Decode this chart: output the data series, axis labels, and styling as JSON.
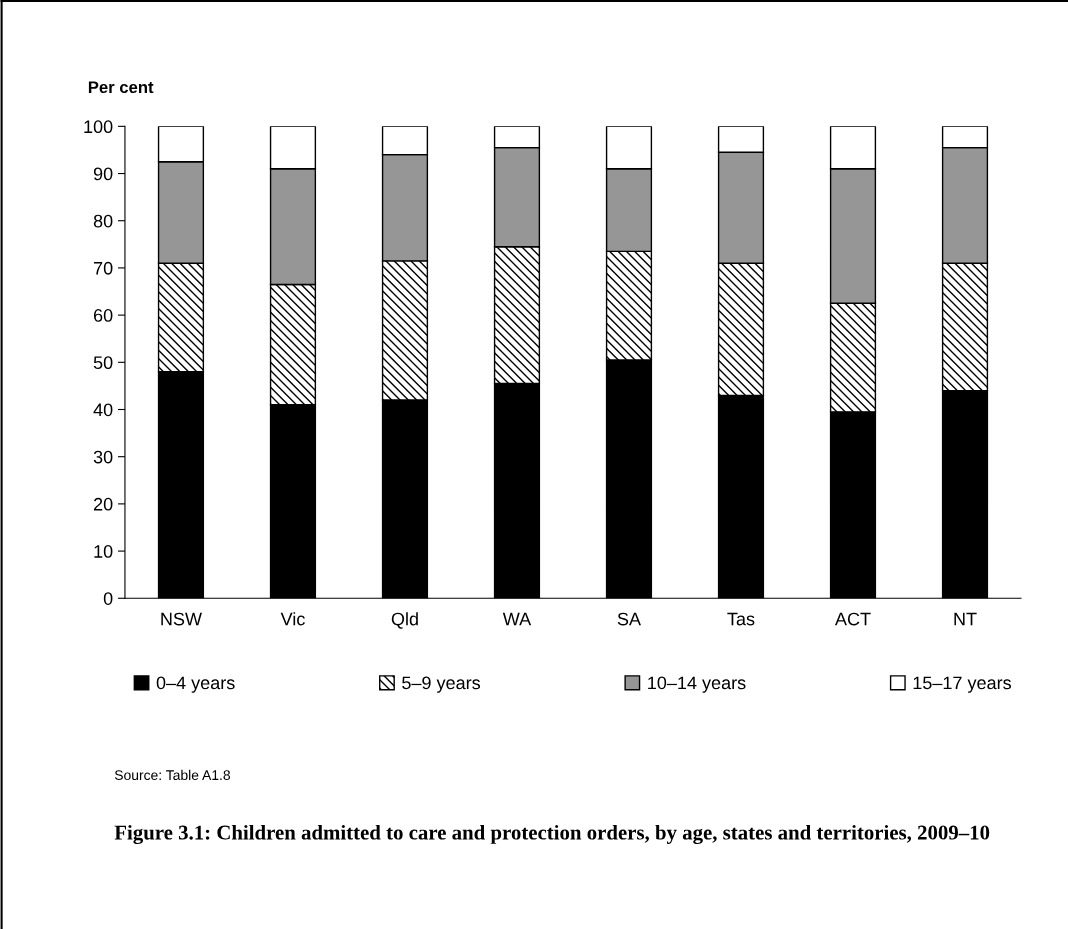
{
  "chart_data": {
    "type": "bar",
    "stacked": true,
    "title": "Figure 3.1: Children admitted to care and protection orders, by age, states and territories, 2009–10",
    "ylabel": "Per cent",
    "categories": [
      "NSW",
      "Vic",
      "Qld",
      "WA",
      "SA",
      "Tas",
      "ACT",
      "NT"
    ],
    "series": [
      {
        "name": "0–4 years",
        "color": "#000000",
        "values": [
          48,
          41,
          42,
          45.5,
          50.5,
          43,
          39.5,
          44
        ]
      },
      {
        "name": "5–9 years",
        "color": "#000000",
        "values": [
          23,
          25.5,
          29.5,
          29,
          23,
          28,
          23,
          27
        ]
      },
      {
        "name": "10–14 years",
        "color": "#969696",
        "values": [
          21.5,
          24.5,
          22.5,
          21,
          17.5,
          23.5,
          28.5,
          24.5
        ]
      },
      {
        "name": "15–17 years",
        "color": "#ffffff",
        "values": [
          7.5,
          9,
          6,
          4.5,
          9,
          5.5,
          9,
          4.5
        ]
      }
    ],
    "ylim": [
      0,
      100
    ],
    "yticks": [
      0,
      10,
      20,
      30,
      40,
      50,
      60,
      70,
      80,
      90,
      100
    ],
    "grid": false,
    "legend": "bottom",
    "annotations": [
      "Source: Table A1.8"
    ]
  }
}
